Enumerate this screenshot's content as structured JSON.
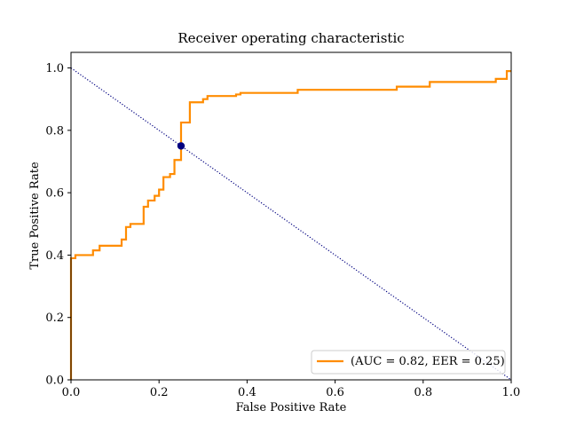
{
  "chart_data": {
    "type": "line",
    "title": "Receiver operating characteristic",
    "xlabel": "False Positive Rate",
    "ylabel": "True Positive Rate",
    "xlim": [
      0.0,
      1.0
    ],
    "ylim": [
      0.0,
      1.05
    ],
    "xticks": [
      0.0,
      0.2,
      0.4,
      0.6,
      0.8,
      1.0
    ],
    "xtick_labels": [
      "0.0",
      "0.2",
      "0.4",
      "0.6",
      "0.8",
      "1.0"
    ],
    "yticks": [
      0.0,
      0.2,
      0.4,
      0.6,
      0.8,
      1.0
    ],
    "ytick_labels": [
      "0.0",
      "0.2",
      "0.4",
      "0.6",
      "0.8",
      "1.0"
    ],
    "grid": false,
    "legend_location": "lower-right",
    "series": [
      {
        "name": "(AUC = 0.82, EER = 0.25)",
        "color": "#ff8c00",
        "style": "solid",
        "step": true,
        "points": [
          [
            0.0,
            0.0
          ],
          [
            0.0,
            0.39
          ],
          [
            0.01,
            0.39
          ],
          [
            0.01,
            0.4
          ],
          [
            0.05,
            0.4
          ],
          [
            0.05,
            0.415
          ],
          [
            0.065,
            0.415
          ],
          [
            0.065,
            0.43
          ],
          [
            0.115,
            0.43
          ],
          [
            0.115,
            0.45
          ],
          [
            0.125,
            0.45
          ],
          [
            0.125,
            0.49
          ],
          [
            0.135,
            0.49
          ],
          [
            0.135,
            0.5
          ],
          [
            0.165,
            0.5
          ],
          [
            0.165,
            0.555
          ],
          [
            0.175,
            0.555
          ],
          [
            0.175,
            0.575
          ],
          [
            0.19,
            0.575
          ],
          [
            0.19,
            0.59
          ],
          [
            0.2,
            0.59
          ],
          [
            0.2,
            0.61
          ],
          [
            0.21,
            0.61
          ],
          [
            0.21,
            0.65
          ],
          [
            0.225,
            0.65
          ],
          [
            0.225,
            0.66
          ],
          [
            0.235,
            0.66
          ],
          [
            0.235,
            0.705
          ],
          [
            0.25,
            0.705
          ],
          [
            0.25,
            0.825
          ],
          [
            0.27,
            0.825
          ],
          [
            0.27,
            0.89
          ],
          [
            0.3,
            0.89
          ],
          [
            0.3,
            0.9
          ],
          [
            0.31,
            0.9
          ],
          [
            0.31,
            0.91
          ],
          [
            0.375,
            0.91
          ],
          [
            0.375,
            0.915
          ],
          [
            0.385,
            0.915
          ],
          [
            0.385,
            0.92
          ],
          [
            0.515,
            0.92
          ],
          [
            0.515,
            0.93
          ],
          [
            0.74,
            0.93
          ],
          [
            0.74,
            0.94
          ],
          [
            0.815,
            0.94
          ],
          [
            0.815,
            0.955
          ],
          [
            0.965,
            0.955
          ],
          [
            0.965,
            0.965
          ],
          [
            0.99,
            0.965
          ],
          [
            0.99,
            0.99
          ],
          [
            1.0,
            0.99
          ]
        ]
      },
      {
        "name": "diagonal",
        "color": "#000080",
        "style": "dotted",
        "points": [
          [
            0.0,
            1.0
          ],
          [
            1.0,
            0.0
          ]
        ]
      }
    ],
    "marker": {
      "x": 0.25,
      "y": 0.75,
      "color": "#000080"
    }
  }
}
